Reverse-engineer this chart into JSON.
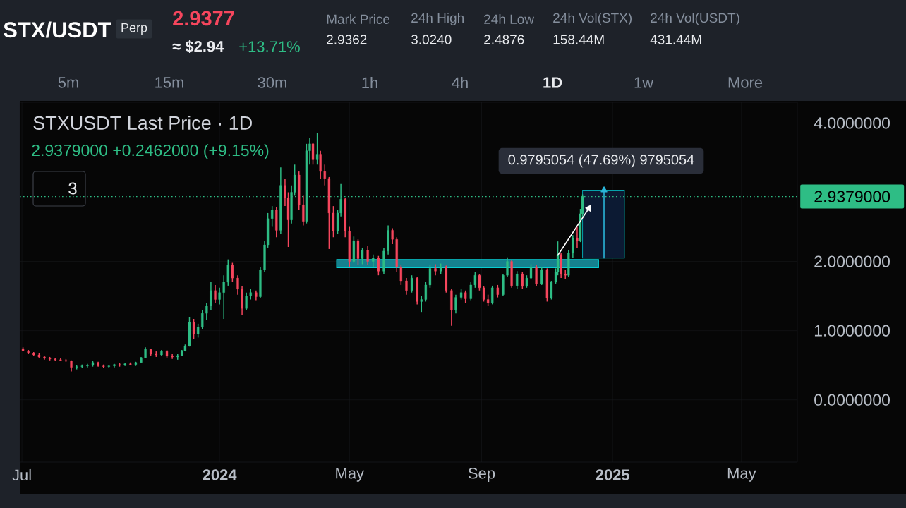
{
  "chart_data": {
    "type": "candlestick",
    "title": "STXUSDT Last Price · 1D",
    "subtitle": "2.9379000 +0.2462000 (+9.15%)",
    "x": [
      "2023-07-02",
      "2023-07-07",
      "2023-07-12",
      "2023-07-17",
      "2023-07-22",
      "2023-07-27",
      "2023-08-01",
      "2023-08-06",
      "2023-08-11",
      "2023-08-16",
      "2023-08-21",
      "2023-08-26",
      "2023-08-31",
      "2023-09-05",
      "2023-09-10",
      "2023-09-15",
      "2023-09-20",
      "2023-09-25",
      "2023-09-30",
      "2023-10-05",
      "2023-10-10",
      "2023-10-15",
      "2023-10-20",
      "2023-10-24",
      "2023-10-29",
      "2023-11-03",
      "2023-11-08",
      "2023-11-13",
      "2023-11-18",
      "2023-11-23",
      "2023-11-27",
      "2023-11-30",
      "2023-12-04",
      "2023-12-08",
      "2023-12-12",
      "2023-12-16",
      "2023-12-20",
      "2023-12-24",
      "2023-12-28",
      "2024-01-01",
      "2024-01-05",
      "2024-01-09",
      "2024-01-13",
      "2024-01-18",
      "2024-01-22",
      "2024-01-26",
      "2024-01-30",
      "2024-02-04",
      "2024-02-08",
      "2024-02-12",
      "2024-02-15",
      "2024-02-19",
      "2024-02-23",
      "2024-02-27",
      "2024-03-02",
      "2024-03-05",
      "2024-03-08",
      "2024-03-11",
      "2024-03-15",
      "2024-03-19",
      "2024-03-22",
      "2024-03-25",
      "2024-03-28",
      "2024-04-01",
      "2024-04-04",
      "2024-04-08",
      "2024-04-12",
      "2024-04-16",
      "2024-04-20",
      "2024-04-23",
      "2024-04-27",
      "2024-05-01",
      "2024-05-05",
      "2024-05-09",
      "2024-05-13",
      "2024-05-18",
      "2024-05-23",
      "2024-05-28",
      "2024-06-02",
      "2024-06-06",
      "2024-06-10",
      "2024-06-14",
      "2024-06-18",
      "2024-06-23",
      "2024-06-28",
      "2024-07-03",
      "2024-07-07",
      "2024-07-11",
      "2024-07-15",
      "2024-07-20",
      "2024-07-25",
      "2024-07-30",
      "2024-08-04",
      "2024-08-08",
      "2024-08-13",
      "2024-08-17",
      "2024-08-22",
      "2024-08-26",
      "2024-08-30",
      "2024-09-03",
      "2024-09-07",
      "2024-09-11",
      "2024-09-16",
      "2024-09-21",
      "2024-09-25",
      "2024-09-29",
      "2024-10-04",
      "2024-10-09",
      "2024-10-13",
      "2024-10-17",
      "2024-10-22",
      "2024-10-27",
      "2024-11-01",
      "2024-11-05",
      "2024-11-09",
      "2024-11-11",
      "2024-11-14",
      "2024-11-18",
      "2024-11-21",
      "2024-11-25",
      "2024-11-29",
      "2024-12-02",
      "2024-12-04"
    ],
    "ohlc": [
      [
        0.74,
        0.76,
        0.7,
        0.71
      ],
      [
        0.71,
        0.72,
        0.66,
        0.67
      ],
      [
        0.67,
        0.69,
        0.63,
        0.65
      ],
      [
        0.65,
        0.68,
        0.61,
        0.62
      ],
      [
        0.62,
        0.64,
        0.58,
        0.6
      ],
      [
        0.6,
        0.62,
        0.57,
        0.59
      ],
      [
        0.59,
        0.61,
        0.56,
        0.58
      ],
      [
        0.58,
        0.6,
        0.56,
        0.57
      ],
      [
        0.57,
        0.59,
        0.55,
        0.56
      ],
      [
        0.56,
        0.57,
        0.41,
        0.47
      ],
      [
        0.47,
        0.5,
        0.44,
        0.48
      ],
      [
        0.48,
        0.51,
        0.46,
        0.49
      ],
      [
        0.49,
        0.52,
        0.47,
        0.5
      ],
      [
        0.5,
        0.56,
        0.48,
        0.54
      ],
      [
        0.54,
        0.55,
        0.48,
        0.49
      ],
      [
        0.49,
        0.51,
        0.46,
        0.48
      ],
      [
        0.48,
        0.5,
        0.46,
        0.49
      ],
      [
        0.49,
        0.52,
        0.47,
        0.51
      ],
      [
        0.51,
        0.53,
        0.48,
        0.5
      ],
      [
        0.5,
        0.53,
        0.49,
        0.52
      ],
      [
        0.52,
        0.54,
        0.5,
        0.51
      ],
      [
        0.51,
        0.55,
        0.49,
        0.54
      ],
      [
        0.54,
        0.62,
        0.53,
        0.61
      ],
      [
        0.61,
        0.76,
        0.6,
        0.73
      ],
      [
        0.73,
        0.74,
        0.64,
        0.66
      ],
      [
        0.66,
        0.7,
        0.62,
        0.65
      ],
      [
        0.65,
        0.72,
        0.63,
        0.7
      ],
      [
        0.7,
        0.72,
        0.6,
        0.63
      ],
      [
        0.63,
        0.66,
        0.59,
        0.62
      ],
      [
        0.62,
        0.66,
        0.58,
        0.64
      ],
      [
        0.64,
        0.72,
        0.63,
        0.71
      ],
      [
        0.71,
        0.8,
        0.7,
        0.78
      ],
      [
        0.78,
        1.2,
        0.77,
        1.12
      ],
      [
        1.12,
        1.17,
        0.88,
        0.95
      ],
      [
        0.95,
        1.1,
        0.9,
        1.05
      ],
      [
        1.05,
        1.3,
        1.02,
        1.25
      ],
      [
        1.25,
        1.4,
        1.15,
        1.36
      ],
      [
        1.36,
        1.7,
        1.3,
        1.58
      ],
      [
        1.58,
        1.66,
        1.4,
        1.45
      ],
      [
        1.45,
        1.62,
        1.38,
        1.55
      ],
      [
        1.55,
        1.8,
        1.17,
        1.7
      ],
      [
        1.7,
        2.03,
        1.65,
        1.95
      ],
      [
        1.95,
        1.98,
        1.7,
        1.76
      ],
      [
        1.76,
        1.8,
        1.52,
        1.6
      ],
      [
        1.6,
        1.64,
        1.22,
        1.32
      ],
      [
        1.32,
        1.55,
        1.3,
        1.5
      ],
      [
        1.5,
        1.6,
        1.45,
        1.55
      ],
      [
        1.55,
        1.58,
        1.44,
        1.49
      ],
      [
        1.49,
        1.92,
        1.47,
        1.88
      ],
      [
        1.88,
        2.3,
        1.85,
        2.24
      ],
      [
        2.24,
        2.7,
        2.2,
        2.62
      ],
      [
        2.62,
        2.8,
        2.5,
        2.74
      ],
      [
        2.74,
        2.78,
        2.35,
        2.45
      ],
      [
        2.45,
        3.36,
        2.4,
        3.1
      ],
      [
        3.1,
        3.2,
        2.8,
        2.92
      ],
      [
        2.92,
        3.0,
        2.21,
        2.6
      ],
      [
        2.6,
        3.1,
        2.55,
        3.0
      ],
      [
        3.0,
        3.4,
        2.95,
        3.25
      ],
      [
        3.25,
        3.3,
        2.75,
        2.82
      ],
      [
        2.82,
        2.95,
        2.52,
        2.58
      ],
      [
        2.58,
        3.7,
        2.55,
        3.6
      ],
      [
        3.6,
        3.79,
        3.4,
        3.7
      ],
      [
        3.7,
        3.72,
        3.4,
        3.47
      ],
      [
        3.47,
        3.86,
        3.4,
        3.55
      ],
      [
        3.55,
        3.6,
        3.2,
        3.3
      ],
      [
        3.3,
        3.4,
        3.1,
        3.2
      ],
      [
        3.2,
        3.22,
        2.18,
        2.7
      ],
      [
        2.7,
        2.8,
        2.35,
        2.44
      ],
      [
        2.44,
        2.75,
        2.4,
        2.7
      ],
      [
        2.7,
        3.12,
        2.65,
        2.9
      ],
      [
        2.9,
        2.92,
        2.35,
        2.44
      ],
      [
        2.44,
        2.5,
        1.92,
        2.0
      ],
      [
        2.0,
        2.36,
        1.98,
        2.3
      ],
      [
        2.3,
        2.32,
        1.95,
        2.04
      ],
      [
        2.04,
        2.2,
        1.96,
        2.16
      ],
      [
        2.16,
        2.22,
        1.95,
        2.0
      ],
      [
        2.0,
        2.1,
        1.92,
        2.05
      ],
      [
        2.05,
        2.08,
        1.8,
        1.86
      ],
      [
        1.86,
        2.2,
        1.82,
        2.15
      ],
      [
        2.15,
        2.52,
        2.1,
        2.45
      ],
      [
        2.45,
        2.48,
        2.25,
        2.32
      ],
      [
        2.32,
        2.35,
        1.85,
        1.92
      ],
      [
        1.92,
        1.95,
        1.66,
        1.72
      ],
      [
        1.72,
        1.76,
        1.52,
        1.58
      ],
      [
        1.58,
        1.8,
        1.55,
        1.76
      ],
      [
        1.76,
        1.78,
        1.38,
        1.42
      ],
      [
        1.42,
        1.5,
        1.27,
        1.45
      ],
      [
        1.45,
        1.7,
        1.42,
        1.66
      ],
      [
        1.66,
        1.95,
        1.62,
        1.9
      ],
      [
        1.9,
        1.96,
        1.8,
        1.86
      ],
      [
        1.86,
        1.97,
        1.82,
        1.92
      ],
      [
        1.92,
        1.94,
        1.55,
        1.58
      ],
      [
        1.58,
        1.6,
        1.07,
        1.3
      ],
      [
        1.3,
        1.52,
        1.25,
        1.48
      ],
      [
        1.48,
        1.6,
        1.45,
        1.55
      ],
      [
        1.55,
        1.58,
        1.4,
        1.46
      ],
      [
        1.46,
        1.7,
        1.44,
        1.66
      ],
      [
        1.66,
        1.85,
        1.62,
        1.8
      ],
      [
        1.8,
        1.82,
        1.58,
        1.62
      ],
      [
        1.62,
        1.64,
        1.42,
        1.45
      ],
      [
        1.45,
        1.52,
        1.36,
        1.4
      ],
      [
        1.4,
        1.65,
        1.38,
        1.62
      ],
      [
        1.62,
        1.66,
        1.48,
        1.52
      ],
      [
        1.52,
        1.82,
        1.5,
        1.8
      ],
      [
        1.8,
        2.06,
        1.78,
        2.0
      ],
      [
        2.0,
        2.02,
        1.62,
        1.65
      ],
      [
        1.65,
        1.86,
        1.6,
        1.82
      ],
      [
        1.82,
        1.85,
        1.6,
        1.64
      ],
      [
        1.64,
        1.8,
        1.62,
        1.76
      ],
      [
        1.76,
        1.96,
        1.74,
        1.92
      ],
      [
        1.92,
        1.95,
        1.64,
        1.68
      ],
      [
        1.68,
        1.92,
        1.66,
        1.88
      ],
      [
        1.88,
        1.9,
        1.42,
        1.47
      ],
      [
        1.47,
        1.72,
        1.45,
        1.7
      ],
      [
        1.7,
        1.9,
        1.68,
        1.85
      ],
      [
        1.85,
        2.29,
        1.8,
        2.1
      ],
      [
        2.1,
        2.12,
        1.76,
        1.82
      ],
      [
        1.82,
        1.88,
        1.74,
        1.8
      ],
      [
        1.8,
        2.16,
        1.78,
        2.12
      ],
      [
        2.12,
        2.38,
        2.05,
        2.34
      ],
      [
        2.34,
        2.5,
        2.2,
        2.3
      ],
      [
        2.3,
        2.76,
        2.28,
        2.69
      ],
      [
        2.69,
        2.97,
        2.65,
        2.94
      ]
    ],
    "colors": [
      "#f6465d",
      "#f6465d",
      "#f6465d",
      "#f6465d",
      "#f6465d",
      "#f6465d",
      "#f6465d",
      "#f6465d",
      "#f6465d",
      "#f6465d",
      "#2ebd85",
      "#2ebd85",
      "#2ebd85",
      "#2ebd85",
      "#f6465d",
      "#f6465d",
      "#2ebd85",
      "#2ebd85",
      "#f6465d",
      "#2ebd85",
      "#f6465d",
      "#2ebd85",
      "#2ebd85",
      "#2ebd85",
      "#f6465d",
      "#f6465d",
      "#2ebd85",
      "#f6465d",
      "#f6465d",
      "#2ebd85",
      "#2ebd85",
      "#2ebd85",
      "#2ebd85",
      "#f6465d",
      "#2ebd85",
      "#2ebd85",
      "#2ebd85",
      "#2ebd85",
      "#f6465d",
      "#2ebd85",
      "#2ebd85",
      "#2ebd85",
      "#f6465d",
      "#f6465d",
      "#f6465d",
      "#2ebd85",
      "#2ebd85",
      "#f6465d",
      "#2ebd85",
      "#2ebd85",
      "#2ebd85",
      "#2ebd85",
      "#f6465d",
      "#2ebd85",
      "#f6465d",
      "#f6465d",
      "#2ebd85",
      "#2ebd85",
      "#f6465d",
      "#f6465d",
      "#2ebd85",
      "#2ebd85",
      "#f6465d",
      "#2ebd85",
      "#f6465d",
      "#f6465d",
      "#f6465d",
      "#f6465d",
      "#2ebd85",
      "#2ebd85",
      "#f6465d",
      "#f6465d",
      "#2ebd85",
      "#f6465d",
      "#2ebd85",
      "#f6465d",
      "#2ebd85",
      "#f6465d",
      "#2ebd85",
      "#2ebd85",
      "#f6465d",
      "#f6465d",
      "#f6465d",
      "#f6465d",
      "#2ebd85",
      "#f6465d",
      "#2ebd85",
      "#2ebd85",
      "#2ebd85",
      "#f6465d",
      "#2ebd85",
      "#f6465d",
      "#f6465d",
      "#2ebd85",
      "#2ebd85",
      "#f6465d",
      "#2ebd85",
      "#2ebd85",
      "#f6465d",
      "#f6465d",
      "#f6465d",
      "#2ebd85",
      "#f6465d",
      "#2ebd85",
      "#2ebd85",
      "#f6465d",
      "#2ebd85",
      "#f6465d",
      "#2ebd85",
      "#2ebd85",
      "#f6465d",
      "#2ebd85",
      "#f6465d",
      "#2ebd85",
      "#2ebd85",
      "#2ebd85",
      "#f6465d",
      "#f6465d",
      "#2ebd85",
      "#2ebd85",
      "#f6465d",
      "#2ebd85",
      "#2ebd85"
    ],
    "xlim": [
      "2023-06-29",
      "2025-06-22"
    ],
    "xticks": [
      {
        "value": "2023-07-01",
        "label": "Jul"
      },
      {
        "value": "2024-01-01",
        "label": "**2024**"
      },
      {
        "value": "2024-05-01",
        "label": "May"
      },
      {
        "value": "2024-09-01",
        "label": "Sep"
      },
      {
        "value": "2025-01-01",
        "label": "**2025**"
      },
      {
        "value": "2025-05-01",
        "label": "May"
      }
    ],
    "ylim": [
      -0.9,
      4.3
    ],
    "yticks": [
      {
        "value": 0,
        "label": "0.0000000"
      },
      {
        "value": 1,
        "label": "1.0000000"
      },
      {
        "value": 2,
        "label": "2.0000000"
      },
      {
        "value": 4,
        "label": "4.0000000"
      }
    ],
    "grid": true,
    "ref_lines": [
      {
        "axis": "y",
        "value": 2.9379,
        "label": "2.9379000",
        "color": "#2ebd85",
        "line_style": "dotted"
      }
    ],
    "series": [
      {
        "type": "line",
        "x": [
          "2024-04-19",
          "2024-12-19"
        ],
        "values": [
          null,
          null
        ],
        "lower": [
          1.91,
          1.91
        ],
        "upper": [
          2.03,
          2.03
        ],
        "color": "#15818f"
      },
      {
        "type": "line",
        "x": [
          "2024-12-04",
          "2025-01-12"
        ],
        "values": [
          null,
          null
        ],
        "lower": [
          2.05,
          2.05
        ],
        "upper": [
          3.03,
          3.03
        ],
        "color": "#0c1a33"
      },
      {
        "type": "line",
        "x": [
          "2024-12-24",
          "2024-12-24"
        ],
        "values": [
          2.05,
          3.03
        ],
        "color": "#2bb5d9"
      },
      {
        "type": "line",
        "x": [
          "2024-11-11",
          "2024-12-10"
        ],
        "values": [
          2.09,
          2.77
        ],
        "color": "#ffffff"
      }
    ],
    "annotations": [
      "STX/USDT",
      "Perp",
      "2.9377",
      "≈ $2.94",
      "+13.71%",
      "Mark Price",
      "2.9362",
      "24h High",
      "3.0240",
      "24h Low",
      "2.4876",
      "24h Vol(STX)",
      "158.44M",
      "24h Vol(USDT)",
      "431.44M",
      "5m",
      "15m",
      "30m",
      "1h",
      "4h",
      "1D",
      "1w",
      "More",
      "3",
      "0.9795054 (47.69%) 9795054"
    ]
  }
}
